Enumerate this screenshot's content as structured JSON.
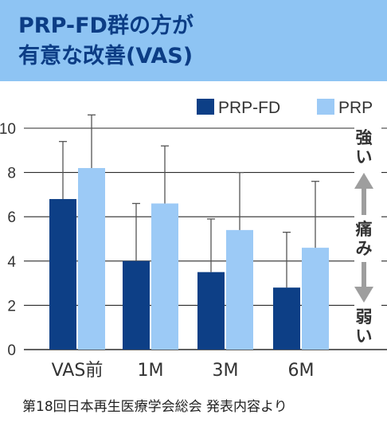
{
  "header": {
    "line1": "PRP-FD群の方が",
    "line2": "有意な改善(VAS)"
  },
  "colors": {
    "header_bg": "#8ec4f3",
    "title_text": "#0c3d85",
    "series_prp_fd": "#0d3f86",
    "series_prp": "#9ccaf6",
    "error_bar": "#555555",
    "arrow": "#9e9e9e"
  },
  "chart_data": {
    "type": "bar",
    "categories": [
      "VAS前",
      "1M",
      "3M",
      "6M"
    ],
    "series": [
      {
        "name": "PRP-FD",
        "values": [
          6.8,
          4.0,
          3.5,
          2.8
        ],
        "errors": [
          2.6,
          2.6,
          2.4,
          2.5
        ],
        "color": "#0d3f86"
      },
      {
        "name": "PRP",
        "values": [
          8.2,
          6.6,
          5.4,
          4.6
        ],
        "errors": [
          2.4,
          2.6,
          2.6,
          3.0
        ],
        "color": "#9ccaf6"
      }
    ],
    "ylim": [
      0,
      10
    ],
    "yticks": [
      0,
      2,
      4,
      6,
      8,
      10
    ],
    "grid": true,
    "legend_position": "top-right",
    "side_labels": {
      "top": "強い",
      "middle": "痛み",
      "bottom": "弱い"
    }
  },
  "source_note": "第18回日本再生医療学会総会 発表内容より"
}
